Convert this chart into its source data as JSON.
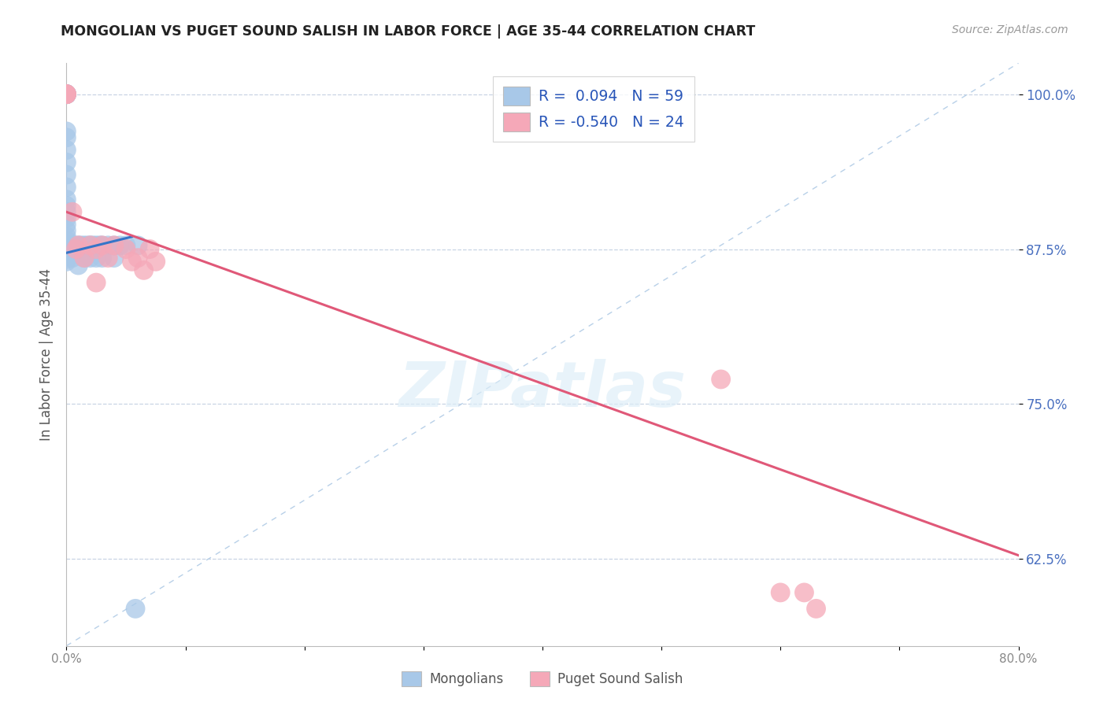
{
  "title": "MONGOLIAN VS PUGET SOUND SALISH IN LABOR FORCE | AGE 35-44 CORRELATION CHART",
  "source": "Source: ZipAtlas.com",
  "ylabel": "In Labor Force | Age 35-44",
  "x_min": 0.0,
  "x_max": 0.8,
  "y_min": 0.555,
  "y_max": 1.025,
  "y_ticks": [
    0.625,
    0.75,
    0.875,
    1.0
  ],
  "y_tick_labels": [
    "62.5%",
    "75.0%",
    "87.5%",
    "100.0%"
  ],
  "x_ticks": [
    0.0,
    0.1,
    0.2,
    0.3,
    0.4,
    0.5,
    0.6,
    0.7,
    0.8
  ],
  "legend_labels": [
    "Mongolians",
    "Puget Sound Salish"
  ],
  "mongolian_R": "0.094",
  "mongolian_N": "59",
  "salish_R": "-0.540",
  "salish_N": "24",
  "blue_color": "#a8c8e8",
  "pink_color": "#f5a8b8",
  "blue_line_color": "#3575c8",
  "pink_line_color": "#e05878",
  "diagonal_color": "#b8d0e8",
  "legend_text_color": "#2855b8",
  "watermark": "ZIPatlas",
  "mongolian_x": [
    0.0,
    0.0,
    0.0,
    0.0,
    0.0,
    0.0,
    0.0,
    0.0,
    0.0,
    0.0,
    0.0,
    0.0,
    0.0,
    0.0,
    0.0,
    0.0,
    0.0,
    0.0,
    0.0,
    0.0,
    0.0,
    0.0,
    0.0,
    0.0,
    0.0,
    0.0,
    0.0,
    0.0,
    0.0,
    0.0,
    0.003,
    0.003,
    0.005,
    0.005,
    0.005,
    0.007,
    0.007,
    0.01,
    0.01,
    0.01,
    0.012,
    0.015,
    0.015,
    0.018,
    0.02,
    0.02,
    0.022,
    0.025,
    0.025,
    0.028,
    0.03,
    0.03,
    0.035,
    0.04,
    0.04,
    0.045,
    0.05,
    0.06,
    0.058
  ],
  "mongolian_y": [
    1.0,
    1.0,
    1.0,
    1.0,
    1.0,
    1.0,
    1.0,
    1.0,
    0.97,
    0.965,
    0.955,
    0.945,
    0.935,
    0.925,
    0.915,
    0.91,
    0.905,
    0.9,
    0.895,
    0.89,
    0.885,
    0.882,
    0.879,
    0.877,
    0.875,
    0.873,
    0.871,
    0.869,
    0.867,
    0.865,
    0.878,
    0.873,
    0.878,
    0.873,
    0.868,
    0.878,
    0.873,
    0.878,
    0.873,
    0.862,
    0.878,
    0.878,
    0.868,
    0.878,
    0.878,
    0.868,
    0.878,
    0.878,
    0.868,
    0.878,
    0.878,
    0.868,
    0.878,
    0.878,
    0.868,
    0.878,
    0.878,
    0.878,
    0.585
  ],
  "salish_x": [
    0.0,
    0.0,
    0.0,
    0.0,
    0.005,
    0.008,
    0.01,
    0.015,
    0.02,
    0.025,
    0.025,
    0.03,
    0.035,
    0.04,
    0.05,
    0.055,
    0.06,
    0.065,
    0.07,
    0.075,
    0.55,
    0.6,
    0.62,
    0.63
  ],
  "salish_y": [
    1.0,
    1.0,
    1.0,
    1.0,
    0.905,
    0.875,
    0.878,
    0.868,
    0.878,
    0.875,
    0.848,
    0.878,
    0.868,
    0.878,
    0.875,
    0.865,
    0.868,
    0.858,
    0.875,
    0.865,
    0.77,
    0.598,
    0.598,
    0.585
  ],
  "blue_line_x0": 0.0,
  "blue_line_x1": 0.055,
  "blue_line_y0": 0.872,
  "blue_line_y1": 0.885,
  "pink_line_x0": 0.0,
  "pink_line_x1": 0.8,
  "pink_line_y0": 0.905,
  "pink_line_y1": 0.628
}
